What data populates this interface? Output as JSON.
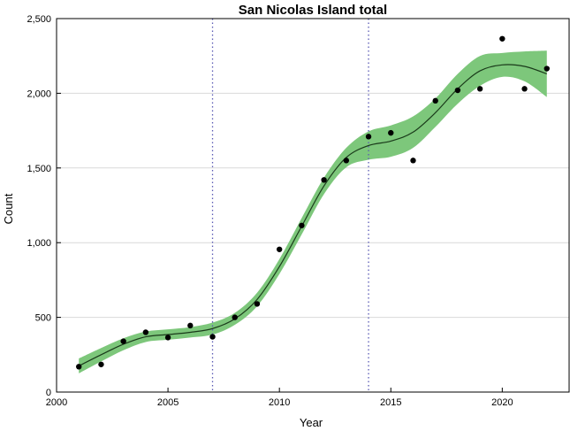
{
  "chart_data": {
    "type": "scatter",
    "title": "San Nicolas Island total",
    "xlabel": "Year",
    "ylabel": "Count",
    "xlim": [
      2000,
      2023
    ],
    "ylim": [
      0,
      2500
    ],
    "x_ticks": [
      2000,
      2005,
      2010,
      2015,
      2020
    ],
    "x_tick_labels": [
      "2000",
      "2005",
      "2010",
      "2015",
      "2020"
    ],
    "y_ticks": [
      0,
      500,
      1000,
      1500,
      2000,
      2500
    ],
    "y_tick_labels": [
      "0",
      "500",
      "1,000",
      "1,500",
      "2,000",
      "2,500"
    ],
    "grid": "horizontal",
    "legend": "none",
    "colors": {
      "band": "#7dc77b",
      "line": "#1a3a1a",
      "points": "#000000",
      "vlines": "#5a5ab4"
    },
    "vertical_reference_lines": [
      2007,
      2014
    ],
    "points": {
      "x": [
        2001,
        2002,
        2003,
        2004,
        2005,
        2006,
        2007,
        2008,
        2009,
        2010,
        2011,
        2012,
        2013,
        2014,
        2015,
        2016,
        2017,
        2018,
        2019,
        2020,
        2021,
        2022
      ],
      "y": [
        170,
        185,
        340,
        400,
        365,
        445,
        370,
        500,
        590,
        955,
        1115,
        1420,
        1550,
        1710,
        1735,
        1550,
        1950,
        2020,
        2030,
        2365,
        2030,
        2165
      ]
    },
    "trend": {
      "x": [
        2001,
        2002,
        2003,
        2004,
        2005,
        2006,
        2007,
        2008,
        2009,
        2010,
        2011,
        2012,
        2013,
        2014,
        2015,
        2016,
        2017,
        2018,
        2019,
        2020,
        2021,
        2022
      ],
      "y": [
        175,
        250,
        320,
        370,
        385,
        400,
        425,
        490,
        620,
        840,
        1110,
        1380,
        1570,
        1650,
        1680,
        1740,
        1870,
        2030,
        2150,
        2190,
        2180,
        2130
      ],
      "lower": [
        125,
        205,
        280,
        335,
        350,
        365,
        385,
        450,
        575,
        790,
        1055,
        1325,
        1505,
        1555,
        1575,
        1635,
        1775,
        1930,
        2050,
        2110,
        2080,
        1975
      ],
      "upper": [
        225,
        295,
        360,
        405,
        420,
        435,
        465,
        530,
        665,
        890,
        1165,
        1435,
        1635,
        1745,
        1785,
        1845,
        1965,
        2130,
        2250,
        2270,
        2280,
        2285
      ]
    }
  }
}
